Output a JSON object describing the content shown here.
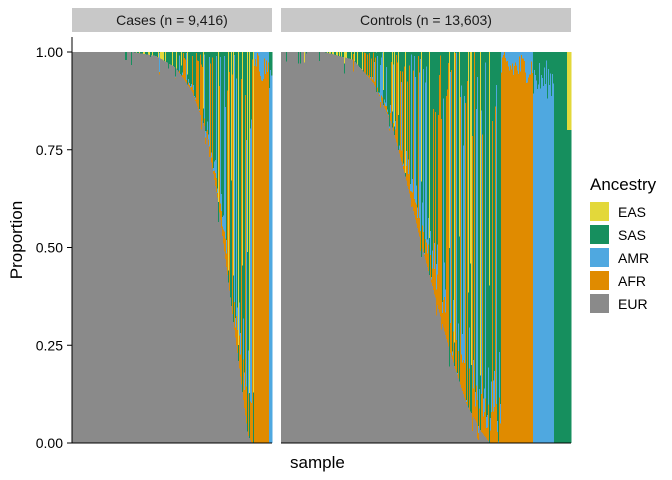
{
  "chart_data": {
    "type": "bar",
    "stacked": true,
    "xlabel": "sample",
    "ylabel": "Proportion",
    "ylim": [
      0,
      1
    ],
    "yticks": [
      "0.00",
      "0.25",
      "0.50",
      "0.75",
      "1.00"
    ],
    "grid": false,
    "legend": {
      "title": "Ancestry",
      "position": "right",
      "entries": [
        {
          "name": "EAS",
          "color": "#E3D83A"
        },
        {
          "name": "SAS",
          "color": "#168F5E"
        },
        {
          "name": "AMR",
          "color": "#4FA8E0"
        },
        {
          "name": "AFR",
          "color": "#E08B00"
        },
        {
          "name": "EUR",
          "color": "#8A8A8A"
        }
      ]
    },
    "stack_order_bottom_to_top": [
      "EUR",
      "AFR",
      "AMR",
      "SAS",
      "EAS"
    ],
    "panels": [
      {
        "label": "Cases (n = 9,416)",
        "n": 9416,
        "eur_curve": [
          {
            "x": 0.0,
            "eur": 1.0
          },
          {
            "x": 0.3,
            "eur": 1.0
          },
          {
            "x": 0.42,
            "eur": 0.99
          },
          {
            "x": 0.52,
            "eur": 0.96
          },
          {
            "x": 0.6,
            "eur": 0.9
          },
          {
            "x": 0.67,
            "eur": 0.8
          },
          {
            "x": 0.73,
            "eur": 0.62
          },
          {
            "x": 0.78,
            "eur": 0.42
          },
          {
            "x": 0.83,
            "eur": 0.22
          },
          {
            "x": 0.88,
            "eur": 0.02
          },
          {
            "x": 0.9,
            "eur": 0.0
          },
          {
            "x": 1.0,
            "eur": 0.0
          }
        ],
        "afr_block": {
          "from": 0.91,
          "to": 0.985
        },
        "amr_block": {
          "from": 0.985,
          "to": 1.0
        }
      },
      {
        "label": "Controls (n = 13,603)",
        "n": 13603,
        "eur_curve": [
          {
            "x": 0.0,
            "eur": 1.0
          },
          {
            "x": 0.15,
            "eur": 1.0
          },
          {
            "x": 0.25,
            "eur": 0.98
          },
          {
            "x": 0.32,
            "eur": 0.92
          },
          {
            "x": 0.38,
            "eur": 0.82
          },
          {
            "x": 0.43,
            "eur": 0.68
          },
          {
            "x": 0.48,
            "eur": 0.52
          },
          {
            "x": 0.53,
            "eur": 0.38
          },
          {
            "x": 0.58,
            "eur": 0.24
          },
          {
            "x": 0.64,
            "eur": 0.1
          },
          {
            "x": 0.69,
            "eur": 0.03
          },
          {
            "x": 0.72,
            "eur": 0.0
          },
          {
            "x": 1.0,
            "eur": 0.0
          }
        ],
        "afr_block": {
          "from": 0.76,
          "to": 0.87
        },
        "amr_block": {
          "from": 0.87,
          "to": 0.94
        },
        "sas_block": {
          "from": 0.94,
          "to": 1.0
        }
      }
    ]
  }
}
